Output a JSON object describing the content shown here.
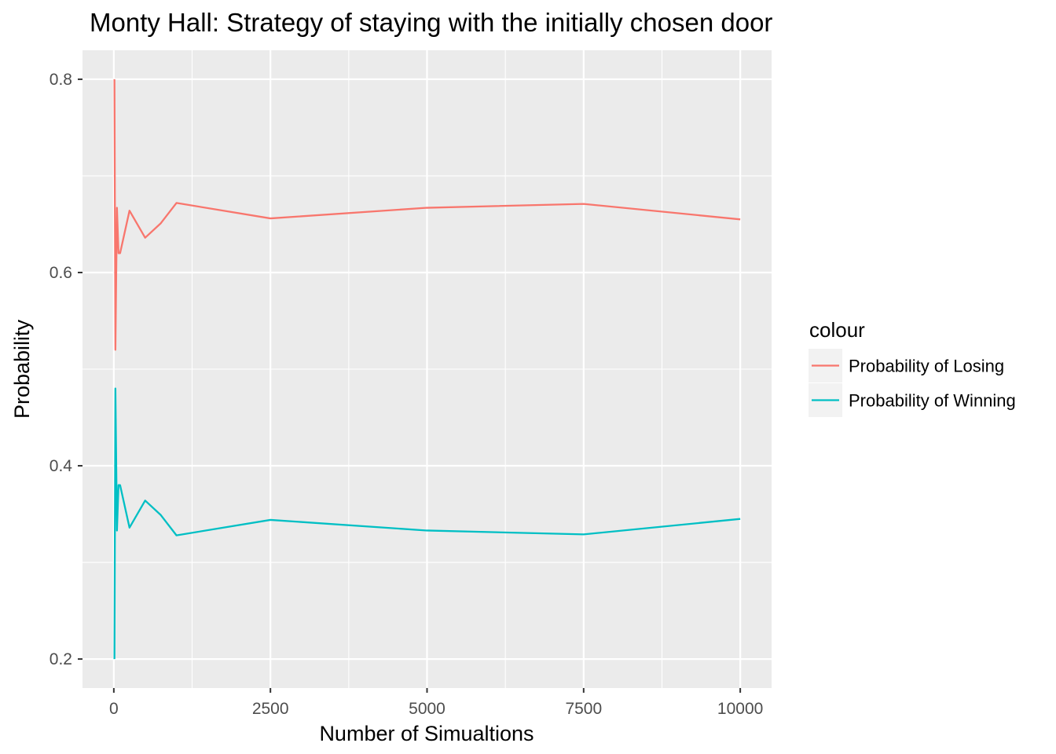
{
  "chart_data": {
    "type": "line",
    "title": "Monty Hall: Strategy of staying with the initially chosen door",
    "xlabel": "Number of Simualtions",
    "ylabel": "Probability",
    "xlim": [
      -500,
      10500
    ],
    "ylim": [
      0.17,
      0.83
    ],
    "x_ticks": [
      0,
      2500,
      5000,
      7500,
      10000
    ],
    "x_tick_labels": [
      "0",
      "2500",
      "5000",
      "7500",
      "10000"
    ],
    "y_ticks": [
      0.2,
      0.4,
      0.6,
      0.8
    ],
    "y_tick_labels": [
      "0.2",
      "0.4",
      "0.6",
      "0.8"
    ],
    "grid": true,
    "legend": {
      "title": "colour",
      "position": "right"
    },
    "series": [
      {
        "name": "Probability of Losing",
        "color": "#F8766D",
        "points": [
          {
            "x": 10,
            "y": 0.8
          },
          {
            "x": 25,
            "y": 0.52
          },
          {
            "x": 50,
            "y": 0.667
          },
          {
            "x": 75,
            "y": 0.62
          },
          {
            "x": 100,
            "y": 0.62
          },
          {
            "x": 250,
            "y": 0.664
          },
          {
            "x": 500,
            "y": 0.636
          },
          {
            "x": 750,
            "y": 0.651
          },
          {
            "x": 1000,
            "y": 0.672
          },
          {
            "x": 2500,
            "y": 0.656
          },
          {
            "x": 5000,
            "y": 0.667
          },
          {
            "x": 7500,
            "y": 0.671
          },
          {
            "x": 10000,
            "y": 0.655
          }
        ]
      },
      {
        "name": "Probability of Winning",
        "color": "#00BFC4",
        "points": [
          {
            "x": 10,
            "y": 0.2
          },
          {
            "x": 25,
            "y": 0.48
          },
          {
            "x": 50,
            "y": 0.333
          },
          {
            "x": 75,
            "y": 0.38
          },
          {
            "x": 100,
            "y": 0.38
          },
          {
            "x": 250,
            "y": 0.336
          },
          {
            "x": 500,
            "y": 0.364
          },
          {
            "x": 750,
            "y": 0.349
          },
          {
            "x": 1000,
            "y": 0.328
          },
          {
            "x": 2500,
            "y": 0.344
          },
          {
            "x": 5000,
            "y": 0.333
          },
          {
            "x": 7500,
            "y": 0.329
          },
          {
            "x": 10000,
            "y": 0.345
          }
        ]
      }
    ]
  },
  "colors": {
    "panel_background": "#EBEBEB",
    "grid_major": "#FFFFFF",
    "tick_text": "#4D4D4D",
    "legend_key_background": "#F2F2F2"
  }
}
